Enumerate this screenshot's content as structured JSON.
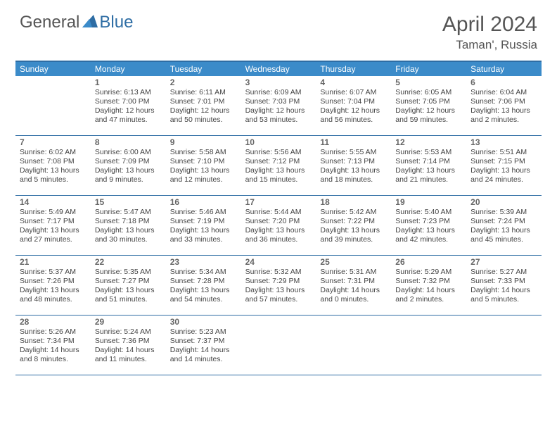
{
  "logo": {
    "general": "General",
    "blue": "Blue"
  },
  "title": "April 2024",
  "location": "Taman', Russia",
  "colors": {
    "header_bg": "#3b8bc9",
    "border": "#2e6da4",
    "header_text": "#ffffff",
    "body_text": "#444444",
    "daynum_text": "#666666"
  },
  "weekdays": [
    "Sunday",
    "Monday",
    "Tuesday",
    "Wednesday",
    "Thursday",
    "Friday",
    "Saturday"
  ],
  "weeks": [
    [
      {
        "n": "",
        "l1": "",
        "l2": "",
        "l3": "",
        "l4": ""
      },
      {
        "n": "1",
        "l1": "Sunrise: 6:13 AM",
        "l2": "Sunset: 7:00 PM",
        "l3": "Daylight: 12 hours",
        "l4": "and 47 minutes."
      },
      {
        "n": "2",
        "l1": "Sunrise: 6:11 AM",
        "l2": "Sunset: 7:01 PM",
        "l3": "Daylight: 12 hours",
        "l4": "and 50 minutes."
      },
      {
        "n": "3",
        "l1": "Sunrise: 6:09 AM",
        "l2": "Sunset: 7:03 PM",
        "l3": "Daylight: 12 hours",
        "l4": "and 53 minutes."
      },
      {
        "n": "4",
        "l1": "Sunrise: 6:07 AM",
        "l2": "Sunset: 7:04 PM",
        "l3": "Daylight: 12 hours",
        "l4": "and 56 minutes."
      },
      {
        "n": "5",
        "l1": "Sunrise: 6:05 AM",
        "l2": "Sunset: 7:05 PM",
        "l3": "Daylight: 12 hours",
        "l4": "and 59 minutes."
      },
      {
        "n": "6",
        "l1": "Sunrise: 6:04 AM",
        "l2": "Sunset: 7:06 PM",
        "l3": "Daylight: 13 hours",
        "l4": "and 2 minutes."
      }
    ],
    [
      {
        "n": "7",
        "l1": "Sunrise: 6:02 AM",
        "l2": "Sunset: 7:08 PM",
        "l3": "Daylight: 13 hours",
        "l4": "and 5 minutes."
      },
      {
        "n": "8",
        "l1": "Sunrise: 6:00 AM",
        "l2": "Sunset: 7:09 PM",
        "l3": "Daylight: 13 hours",
        "l4": "and 9 minutes."
      },
      {
        "n": "9",
        "l1": "Sunrise: 5:58 AM",
        "l2": "Sunset: 7:10 PM",
        "l3": "Daylight: 13 hours",
        "l4": "and 12 minutes."
      },
      {
        "n": "10",
        "l1": "Sunrise: 5:56 AM",
        "l2": "Sunset: 7:12 PM",
        "l3": "Daylight: 13 hours",
        "l4": "and 15 minutes."
      },
      {
        "n": "11",
        "l1": "Sunrise: 5:55 AM",
        "l2": "Sunset: 7:13 PM",
        "l3": "Daylight: 13 hours",
        "l4": "and 18 minutes."
      },
      {
        "n": "12",
        "l1": "Sunrise: 5:53 AM",
        "l2": "Sunset: 7:14 PM",
        "l3": "Daylight: 13 hours",
        "l4": "and 21 minutes."
      },
      {
        "n": "13",
        "l1": "Sunrise: 5:51 AM",
        "l2": "Sunset: 7:15 PM",
        "l3": "Daylight: 13 hours",
        "l4": "and 24 minutes."
      }
    ],
    [
      {
        "n": "14",
        "l1": "Sunrise: 5:49 AM",
        "l2": "Sunset: 7:17 PM",
        "l3": "Daylight: 13 hours",
        "l4": "and 27 minutes."
      },
      {
        "n": "15",
        "l1": "Sunrise: 5:47 AM",
        "l2": "Sunset: 7:18 PM",
        "l3": "Daylight: 13 hours",
        "l4": "and 30 minutes."
      },
      {
        "n": "16",
        "l1": "Sunrise: 5:46 AM",
        "l2": "Sunset: 7:19 PM",
        "l3": "Daylight: 13 hours",
        "l4": "and 33 minutes."
      },
      {
        "n": "17",
        "l1": "Sunrise: 5:44 AM",
        "l2": "Sunset: 7:20 PM",
        "l3": "Daylight: 13 hours",
        "l4": "and 36 minutes."
      },
      {
        "n": "18",
        "l1": "Sunrise: 5:42 AM",
        "l2": "Sunset: 7:22 PM",
        "l3": "Daylight: 13 hours",
        "l4": "and 39 minutes."
      },
      {
        "n": "19",
        "l1": "Sunrise: 5:40 AM",
        "l2": "Sunset: 7:23 PM",
        "l3": "Daylight: 13 hours",
        "l4": "and 42 minutes."
      },
      {
        "n": "20",
        "l1": "Sunrise: 5:39 AM",
        "l2": "Sunset: 7:24 PM",
        "l3": "Daylight: 13 hours",
        "l4": "and 45 minutes."
      }
    ],
    [
      {
        "n": "21",
        "l1": "Sunrise: 5:37 AM",
        "l2": "Sunset: 7:26 PM",
        "l3": "Daylight: 13 hours",
        "l4": "and 48 minutes."
      },
      {
        "n": "22",
        "l1": "Sunrise: 5:35 AM",
        "l2": "Sunset: 7:27 PM",
        "l3": "Daylight: 13 hours",
        "l4": "and 51 minutes."
      },
      {
        "n": "23",
        "l1": "Sunrise: 5:34 AM",
        "l2": "Sunset: 7:28 PM",
        "l3": "Daylight: 13 hours",
        "l4": "and 54 minutes."
      },
      {
        "n": "24",
        "l1": "Sunrise: 5:32 AM",
        "l2": "Sunset: 7:29 PM",
        "l3": "Daylight: 13 hours",
        "l4": "and 57 minutes."
      },
      {
        "n": "25",
        "l1": "Sunrise: 5:31 AM",
        "l2": "Sunset: 7:31 PM",
        "l3": "Daylight: 14 hours",
        "l4": "and 0 minutes."
      },
      {
        "n": "26",
        "l1": "Sunrise: 5:29 AM",
        "l2": "Sunset: 7:32 PM",
        "l3": "Daylight: 14 hours",
        "l4": "and 2 minutes."
      },
      {
        "n": "27",
        "l1": "Sunrise: 5:27 AM",
        "l2": "Sunset: 7:33 PM",
        "l3": "Daylight: 14 hours",
        "l4": "and 5 minutes."
      }
    ],
    [
      {
        "n": "28",
        "l1": "Sunrise: 5:26 AM",
        "l2": "Sunset: 7:34 PM",
        "l3": "Daylight: 14 hours",
        "l4": "and 8 minutes."
      },
      {
        "n": "29",
        "l1": "Sunrise: 5:24 AM",
        "l2": "Sunset: 7:36 PM",
        "l3": "Daylight: 14 hours",
        "l4": "and 11 minutes."
      },
      {
        "n": "30",
        "l1": "Sunrise: 5:23 AM",
        "l2": "Sunset: 7:37 PM",
        "l3": "Daylight: 14 hours",
        "l4": "and 14 minutes."
      },
      {
        "n": "",
        "l1": "",
        "l2": "",
        "l3": "",
        "l4": ""
      },
      {
        "n": "",
        "l1": "",
        "l2": "",
        "l3": "",
        "l4": ""
      },
      {
        "n": "",
        "l1": "",
        "l2": "",
        "l3": "",
        "l4": ""
      },
      {
        "n": "",
        "l1": "",
        "l2": "",
        "l3": "",
        "l4": ""
      }
    ]
  ]
}
